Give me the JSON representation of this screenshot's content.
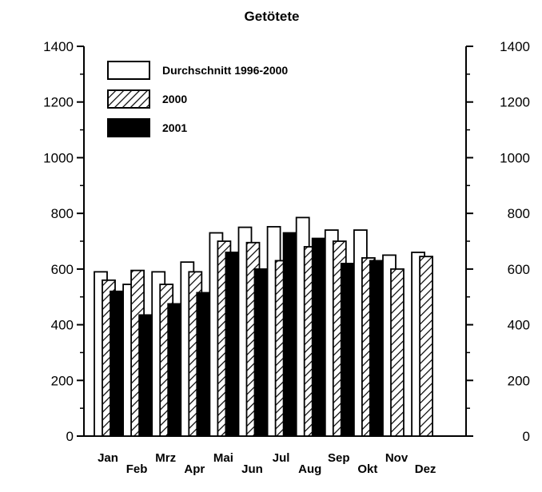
{
  "chart_data": {
    "type": "bar",
    "title": "Getötete",
    "xlabel": "",
    "ylabel": "",
    "ylim": [
      0,
      1400
    ],
    "y_ticks": [
      "0",
      "200",
      "400",
      "600",
      "800",
      "1000",
      "1200",
      "1400"
    ],
    "categories": [
      "Jan",
      "Feb",
      "Mrz",
      "Apr",
      "Mai",
      "Jun",
      "Jul",
      "Aug",
      "Sep",
      "Okt",
      "Nov",
      "Dez"
    ],
    "series": [
      {
        "name": "Durchschnitt 1996-2000",
        "style": "white",
        "values": [
          590,
          545,
          590,
          625,
          730,
          750,
          752,
          785,
          740,
          740,
          650,
          660
        ]
      },
      {
        "name": "2000",
        "style": "hatched",
        "values": [
          560,
          595,
          545,
          590,
          700,
          695,
          630,
          680,
          700,
          640,
          600,
          645
        ]
      },
      {
        "name": "2001",
        "style": "black",
        "values": [
          520,
          435,
          475,
          515,
          660,
          600,
          730,
          710,
          620,
          630,
          null,
          null
        ]
      }
    ],
    "legend_position": "top-left",
    "grid": false,
    "colors": {
      "fill_white": "#ffffff",
      "fill_black": "#000000",
      "stroke": "#000000"
    }
  }
}
